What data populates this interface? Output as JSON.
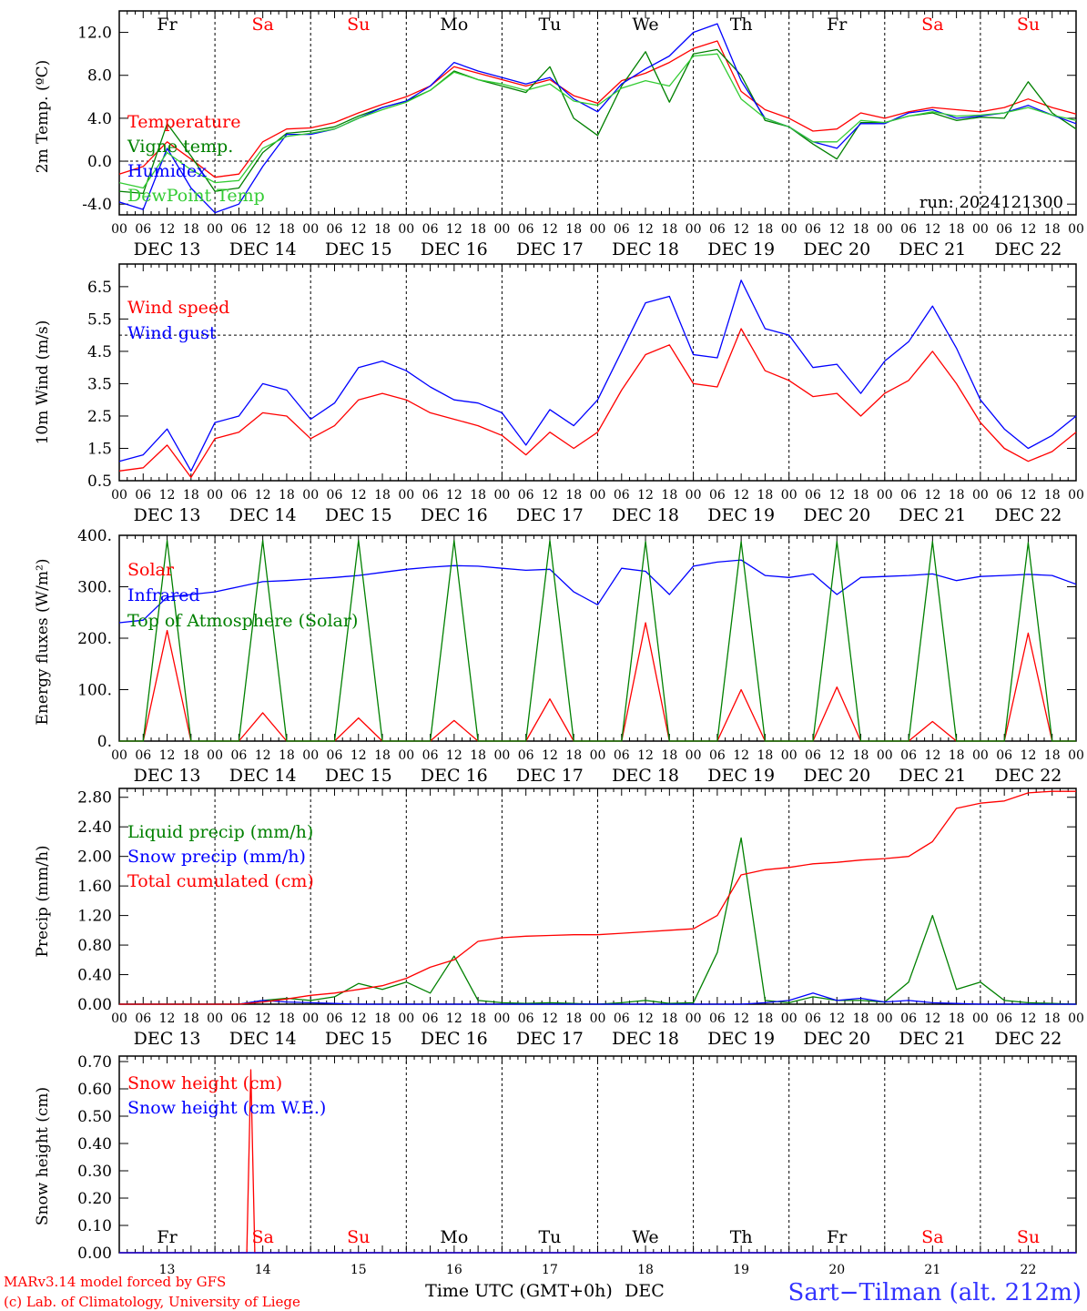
{
  "colors": {
    "red": "#ff0000",
    "green": "#008000",
    "blue": "#0000ff",
    "lightgreen": "#33cc33",
    "darkgreen": "#228b22",
    "black": "#000000"
  },
  "days": {
    "names": [
      "Fr",
      "Sa",
      "Su",
      "Mo",
      "Tu",
      "We",
      "Th",
      "Fr",
      "Sa",
      "Su"
    ],
    "weekend": [
      false,
      true,
      true,
      false,
      false,
      false,
      false,
      false,
      true,
      true
    ],
    "date_labels": [
      "DEC 13",
      "DEC 14",
      "DEC 15",
      "DEC 16",
      "DEC 17",
      "DEC 18",
      "DEC 19",
      "DEC 20",
      "DEC 21",
      "DEC 22"
    ],
    "numbers": [
      "13",
      "14",
      "15",
      "16",
      "17",
      "18",
      "19",
      "20",
      "21",
      "22"
    ],
    "hour_labels": [
      "00",
      "06",
      "12",
      "18"
    ],
    "final_hour": "00"
  },
  "footer": {
    "credit_line1": "MARv3.14 model forced by GFS",
    "credit_line2": "(c) Lab. of Climatology, University of Liege",
    "xaxis_label": "Time UTC (GMT+0h)",
    "month": "DEC",
    "station": "Sart−Tilman (alt. 212m)"
  },
  "chart_data": [
    {
      "type": "line",
      "ylabel": "2m Temp. (ºC)",
      "run_label": "run: 2024121300",
      "yticks": [
        "12.0",
        "8.0",
        "4.0",
        "0.0",
        "-4.0"
      ],
      "ytick_values": [
        12,
        8,
        4,
        0,
        -4
      ],
      "ylim": [
        -5,
        14
      ],
      "ref_line": 0,
      "x_hours": [
        0,
        6,
        12,
        18,
        24,
        30,
        36,
        42,
        48,
        54,
        60,
        66,
        72,
        78,
        84,
        90,
        96,
        102,
        108,
        114,
        120,
        126,
        132,
        138,
        144,
        150,
        156,
        162,
        168,
        174,
        180,
        186,
        192,
        198,
        204,
        210,
        216,
        222,
        228,
        234,
        240
      ],
      "series": [
        {
          "name": "Temperature",
          "color": "#ff0000",
          "values": [
            -1.2,
            -0.5,
            1.8,
            0.2,
            -1.5,
            -1.2,
            1.8,
            3.0,
            3.1,
            3.6,
            4.5,
            5.3,
            6.0,
            7.0,
            8.8,
            8.2,
            7.6,
            7.0,
            7.6,
            6.1,
            5.4,
            7.5,
            8.2,
            9.2,
            10.5,
            11.2,
            6.5,
            4.8,
            4.0,
            2.8,
            3.0,
            4.5,
            4.0,
            4.6,
            5.0,
            4.8,
            4.6,
            5.0,
            5.8,
            5.0,
            4.4
          ]
        },
        {
          "name": "Vigne temp.",
          "color": "#008000",
          "values": [
            -2.8,
            -3.0,
            3.5,
            0.5,
            -2.8,
            -2.5,
            0.8,
            2.6,
            2.8,
            3.2,
            4.2,
            5.0,
            5.6,
            6.6,
            8.4,
            7.6,
            7.0,
            6.4,
            8.8,
            4.0,
            2.4,
            7.0,
            10.2,
            5.5,
            10.0,
            10.4,
            8.0,
            3.8,
            3.2,
            1.6,
            0.2,
            3.6,
            3.6,
            4.2,
            4.5,
            3.8,
            4.1,
            4.0,
            7.4,
            4.5,
            3.0
          ]
        },
        {
          "name": "Humidex",
          "color": "#0000ff",
          "values": [
            -3.8,
            -4.5,
            1.2,
            -2.5,
            -4.8,
            -4.0,
            -0.5,
            2.5,
            2.5,
            3.0,
            4.0,
            5.0,
            5.6,
            7.0,
            9.2,
            8.4,
            7.8,
            7.2,
            7.8,
            5.8,
            4.6,
            7.2,
            8.6,
            9.8,
            12.0,
            12.8,
            7.5,
            4.0,
            3.2,
            1.8,
            1.2,
            3.5,
            3.5,
            4.5,
            4.8,
            4.0,
            4.2,
            4.5,
            5.2,
            4.3,
            3.5
          ]
        },
        {
          "name": "DewPoint Temp",
          "color": "#33cc33",
          "values": [
            -2.0,
            -2.5,
            0.8,
            -0.8,
            -2.0,
            -1.8,
            1.2,
            2.3,
            2.6,
            3.0,
            4.0,
            4.8,
            5.5,
            6.6,
            8.3,
            7.6,
            7.2,
            6.6,
            7.2,
            5.6,
            5.2,
            6.8,
            7.5,
            7.0,
            9.8,
            10.0,
            5.8,
            4.0,
            3.2,
            1.8,
            1.8,
            3.8,
            3.6,
            4.2,
            4.6,
            4.2,
            4.3,
            4.5,
            5.0,
            4.3,
            3.8
          ]
        }
      ]
    },
    {
      "type": "line",
      "ylabel": "10m Wind (m/s)",
      "yticks": [
        "6.5",
        "5.5",
        "4.5",
        "3.5",
        "2.5",
        "1.5",
        "0.5"
      ],
      "ytick_values": [
        6.5,
        5.5,
        4.5,
        3.5,
        2.5,
        1.5,
        0.5
      ],
      "ylim": [
        0.5,
        7.2
      ],
      "ref_line": 5,
      "x_hours": [
        0,
        6,
        12,
        18,
        24,
        30,
        36,
        42,
        48,
        54,
        60,
        66,
        72,
        78,
        84,
        90,
        96,
        102,
        108,
        114,
        120,
        126,
        132,
        138,
        144,
        150,
        156,
        162,
        168,
        174,
        180,
        186,
        192,
        198,
        204,
        210,
        216,
        222,
        228,
        234,
        240
      ],
      "series": [
        {
          "name": "Wind speed",
          "color": "#ff0000",
          "values": [
            0.8,
            0.9,
            1.6,
            0.6,
            1.8,
            2.0,
            2.6,
            2.5,
            1.8,
            2.2,
            3.0,
            3.2,
            3.0,
            2.6,
            2.4,
            2.2,
            1.9,
            1.3,
            2.0,
            1.5,
            2.0,
            3.3,
            4.4,
            4.7,
            3.5,
            3.4,
            5.2,
            3.9,
            3.6,
            3.1,
            3.2,
            2.5,
            3.2,
            3.6,
            4.5,
            3.5,
            2.3,
            1.5,
            1.1,
            1.4,
            2.0
          ]
        },
        {
          "name": "Wind gust",
          "color": "#0000ff",
          "values": [
            1.1,
            1.3,
            2.1,
            0.8,
            2.3,
            2.5,
            3.5,
            3.3,
            2.4,
            2.9,
            4.0,
            4.2,
            3.9,
            3.4,
            3.0,
            2.9,
            2.6,
            1.6,
            2.7,
            2.2,
            3.0,
            4.5,
            6.0,
            6.2,
            4.4,
            4.3,
            6.7,
            5.2,
            5.0,
            4.0,
            4.1,
            3.2,
            4.2,
            4.8,
            5.9,
            4.6,
            3.0,
            2.1,
            1.5,
            1.9,
            2.5
          ]
        }
      ]
    },
    {
      "type": "line",
      "ylabel": "Energy fluxes (W/m²)",
      "yticks": [
        "400.",
        "300.",
        "200.",
        "100.",
        "0."
      ],
      "ytick_values": [
        400,
        300,
        200,
        100,
        0
      ],
      "ylim": [
        0,
        400
      ],
      "x_hours": [
        0,
        6,
        12,
        18,
        24,
        30,
        36,
        42,
        48,
        54,
        60,
        66,
        72,
        78,
        84,
        90,
        96,
        102,
        108,
        114,
        120,
        126,
        132,
        138,
        144,
        150,
        156,
        162,
        168,
        174,
        180,
        186,
        192,
        198,
        204,
        210,
        216,
        222,
        228,
        234,
        240
      ],
      "series": [
        {
          "name": "Solar",
          "color": "#ff0000",
          "values": [
            0,
            0,
            215,
            0,
            0,
            0,
            55,
            0,
            0,
            0,
            45,
            0,
            0,
            0,
            40,
            0,
            0,
            0,
            82,
            0,
            0,
            0,
            230,
            0,
            0,
            0,
            100,
            0,
            0,
            0,
            105,
            0,
            0,
            0,
            38,
            0,
            0,
            0,
            210,
            0,
            0
          ]
        },
        {
          "name": "Infrared",
          "color": "#0000ff",
          "values": [
            230,
            235,
            280,
            285,
            290,
            300,
            310,
            312,
            315,
            318,
            322,
            328,
            334,
            338,
            341,
            340,
            336,
            332,
            334,
            290,
            265,
            336,
            330,
            285,
            340,
            348,
            352,
            322,
            318,
            325,
            285,
            318,
            320,
            322,
            325,
            312,
            320,
            322,
            324,
            322,
            305
          ]
        },
        {
          "name": "Top of Atmosphere (Solar)",
          "color": "#008000",
          "values": [
            0,
            0,
            390,
            0,
            0,
            0,
            390,
            0,
            0,
            0,
            390,
            0,
            0,
            0,
            390,
            0,
            0,
            0,
            390,
            0,
            0,
            0,
            388,
            0,
            0,
            0,
            388,
            0,
            0,
            0,
            388,
            0,
            0,
            0,
            388,
            0,
            0,
            0,
            386,
            0,
            0
          ]
        }
      ]
    },
    {
      "type": "line",
      "ylabel": "Precip (mm/h)",
      "yticks": [
        "2.80",
        "2.40",
        "2.00",
        "1.60",
        "1.20",
        "0.80",
        "0.40",
        "0.00"
      ],
      "ytick_values": [
        2.8,
        2.4,
        2.0,
        1.6,
        1.2,
        0.8,
        0.4,
        0.0
      ],
      "ylim": [
        0,
        2.92
      ],
      "x_hours": [
        0,
        6,
        12,
        18,
        24,
        30,
        36,
        42,
        48,
        54,
        60,
        66,
        72,
        78,
        84,
        90,
        96,
        102,
        108,
        114,
        120,
        126,
        132,
        138,
        144,
        150,
        156,
        162,
        168,
        174,
        180,
        186,
        192,
        198,
        204,
        210,
        216,
        222,
        228,
        234,
        240
      ],
      "series": [
        {
          "name": "Liquid precip (mm/h)",
          "color": "#008000",
          "values": [
            0,
            0,
            0,
            0,
            0,
            0,
            0.05,
            0.08,
            0.05,
            0.1,
            0.28,
            0.2,
            0.3,
            0.15,
            0.65,
            0.05,
            0.02,
            0.01,
            0.02,
            0.01,
            0,
            0.02,
            0.05,
            0.01,
            0.02,
            0.7,
            2.25,
            0.05,
            0.02,
            0.1,
            0.05,
            0.05,
            0.03,
            0.3,
            1.2,
            0.2,
            0.3,
            0.05,
            0.02,
            0.01,
            0
          ]
        },
        {
          "name": "Snow precip (mm/h)",
          "color": "#0000ff",
          "values": [
            0,
            0,
            0,
            0,
            0,
            0,
            0.05,
            0.03,
            0.02,
            0.01,
            0,
            0,
            0,
            0,
            0,
            0,
            0,
            0,
            0,
            0,
            0,
            0,
            0,
            0,
            0,
            0,
            0,
            0.02,
            0.05,
            0.15,
            0.05,
            0.08,
            0.03,
            0.05,
            0.02,
            0.01,
            0,
            0,
            0,
            0,
            0
          ]
        },
        {
          "name": "Total cumulated (cm)",
          "color": "#ff0000",
          "values": [
            0,
            0,
            0,
            0,
            0,
            0,
            0.03,
            0.07,
            0.12,
            0.15,
            0.2,
            0.25,
            0.35,
            0.5,
            0.6,
            0.85,
            0.9,
            0.92,
            0.93,
            0.94,
            0.94,
            0.96,
            0.98,
            1.0,
            1.02,
            1.2,
            1.75,
            1.82,
            1.85,
            1.9,
            1.92,
            1.95,
            1.97,
            2.0,
            2.2,
            2.65,
            2.72,
            2.75,
            2.86,
            2.88,
            2.88
          ]
        }
      ]
    },
    {
      "type": "line",
      "ylabel": "Snow height (cm)",
      "yticks": [
        "0.70",
        "0.60",
        "0.50",
        "0.40",
        "0.30",
        "0.20",
        "0.10",
        "0.00"
      ],
      "ytick_values": [
        0.7,
        0.6,
        0.5,
        0.4,
        0.3,
        0.2,
        0.1,
        0.0
      ],
      "ylim": [
        0,
        0.72
      ],
      "x_hours": [
        0,
        6,
        12,
        18,
        24,
        30,
        32,
        33,
        34,
        36,
        42,
        48,
        72,
        96,
        120,
        144,
        168,
        192,
        216,
        240
      ],
      "series": [
        {
          "name": "Snow height (cm)",
          "color": "#ff0000",
          "values": [
            0,
            0,
            0,
            0,
            0,
            0,
            0.0,
            0.67,
            0.0,
            0,
            0,
            0,
            0,
            0,
            0,
            0,
            0,
            0,
            0,
            0
          ]
        },
        {
          "name": "Snow height (cm W.E.)",
          "color": "#0000ff",
          "values": [
            0,
            0,
            0,
            0,
            0,
            0,
            0,
            0,
            0,
            0,
            0,
            0,
            0,
            0,
            0,
            0,
            0,
            0,
            0,
            0
          ]
        }
      ]
    }
  ]
}
